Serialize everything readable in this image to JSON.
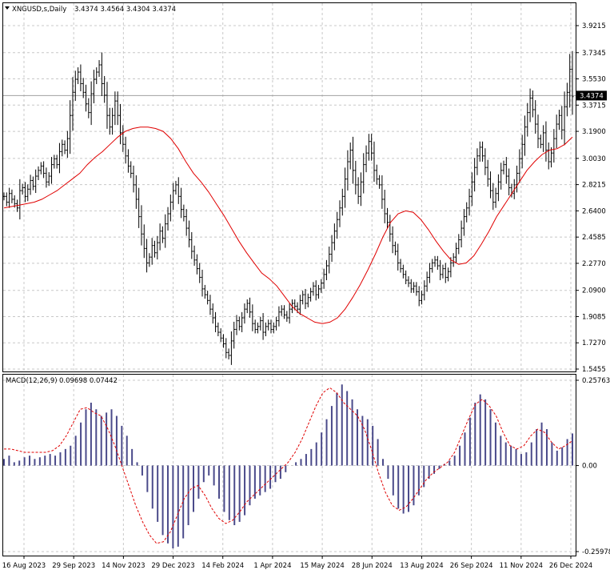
{
  "header": {
    "symbol_label": "XNGUSD,s,Daily",
    "ohlc": "3.4374 3.4564 3.4304 3.4374",
    "menu_icon": "triangle-down-icon"
  },
  "price_tag": "3.4374",
  "macd_header": {
    "label": "MACD(12,26,9)",
    "values": "0.09698 0.07442"
  },
  "colors": {
    "bars": "#000000",
    "moving_average": "#e00000",
    "macd_histogram": "#4a4a8a",
    "macd_signal": "#e00000",
    "grid": "#c8c8c8",
    "background": "#ffffff"
  },
  "chart_data": [
    {
      "type": "bar",
      "subtype": "ohlc",
      "title": "XNGUSD,s,Daily",
      "ylim": [
        1.5455,
        3.9215
      ],
      "y_ticks": [
        "3.9215",
        "3.7345",
        "3.5530",
        "3.3715",
        "3.1900",
        "3.0030",
        "2.8215",
        "2.6400",
        "2.4585",
        "2.2770",
        "2.0900",
        "1.9085",
        "1.7270",
        "1.5455"
      ],
      "y_tick_values": [
        3.9215,
        3.7345,
        3.553,
        3.3715,
        3.19,
        3.003,
        2.8215,
        2.64,
        2.4585,
        2.277,
        2.09,
        1.9085,
        1.727,
        1.5455
      ],
      "x_ticks": [
        "16 Aug 2023",
        "29 Sep 2023",
        "14 Nov 2023",
        "29 Dec 2023",
        "14 Feb 2024",
        "1 Apr 2024",
        "15 May 2024",
        "28 Jun 2024",
        "13 Aug 2024",
        "26 Sep 2024",
        "11 Nov 2024",
        "26 Dec 2024"
      ],
      "current_price": 3.4374,
      "grid": true,
      "series": [
        {
          "kind": "price_closes",
          "values": [
            2.74,
            2.7,
            2.76,
            2.72,
            2.69,
            2.66,
            2.78,
            2.8,
            2.74,
            2.79,
            2.85,
            2.81,
            2.88,
            2.92,
            2.95,
            2.9,
            2.84,
            2.88,
            2.96,
            3.0,
            2.96,
            3.05,
            3.1,
            3.06,
            3.14,
            3.3,
            3.46,
            3.55,
            3.6,
            3.52,
            3.46,
            3.38,
            3.32,
            3.45,
            3.55,
            3.6,
            3.65,
            3.52,
            3.44,
            3.3,
            3.22,
            3.3,
            3.4,
            3.3,
            3.18,
            3.1,
            3.02,
            2.95,
            2.9,
            2.82,
            2.72,
            2.6,
            2.48,
            2.38,
            2.28,
            2.32,
            2.4,
            2.35,
            2.42,
            2.5,
            2.45,
            2.55,
            2.62,
            2.7,
            2.78,
            2.82,
            2.74,
            2.65,
            2.6,
            2.52,
            2.44,
            2.36,
            2.3,
            2.24,
            2.18,
            2.1,
            2.06,
            2.02,
            1.96,
            1.9,
            1.84,
            1.8,
            1.76,
            1.72,
            1.66,
            1.64,
            1.74,
            1.82,
            1.88,
            1.84,
            1.9,
            1.96,
            2.0,
            1.94,
            1.86,
            1.82,
            1.84,
            1.88,
            1.8,
            1.84,
            1.86,
            1.82,
            1.84,
            1.88,
            1.94,
            1.96,
            1.92,
            1.9,
            1.96,
            2.0,
            1.98,
            1.96,
            2.02,
            2.06,
            2.0,
            2.04,
            2.08,
            2.12,
            2.06,
            2.1,
            2.14,
            2.2,
            2.26,
            2.34,
            2.42,
            2.5,
            2.58,
            2.66,
            2.74,
            2.86,
            2.98,
            3.06,
            2.92,
            2.82,
            2.74,
            2.84,
            2.96,
            3.04,
            3.12,
            3.04,
            2.92,
            2.86,
            2.82,
            2.72,
            2.62,
            2.56,
            2.48,
            2.4,
            2.36,
            2.28,
            2.24,
            2.2,
            2.16,
            2.14,
            2.1,
            2.12,
            2.08,
            2.02,
            2.06,
            2.12,
            2.18,
            2.24,
            2.28,
            2.3,
            2.26,
            2.2,
            2.24,
            2.18,
            2.22,
            2.28,
            2.32,
            2.38,
            2.44,
            2.52,
            2.6,
            2.66,
            2.74,
            2.84,
            2.94,
            3.02,
            3.08,
            3.02,
            2.94,
            2.86,
            2.78,
            2.7,
            2.76,
            2.84,
            2.92,
            2.96,
            2.88,
            2.8,
            2.76,
            2.82,
            2.9,
            3.0,
            3.1,
            3.22,
            3.32,
            3.42,
            3.34,
            3.24,
            3.14,
            3.1,
            3.18,
            3.06,
            2.98,
            3.04,
            3.14,
            3.24,
            3.3,
            3.2,
            3.36,
            3.46,
            3.62,
            3.43
          ]
        },
        {
          "kind": "moving_average",
          "color": "#e00000",
          "values": [
            2.66,
            2.67,
            2.68,
            2.69,
            2.7,
            2.72,
            2.75,
            2.78,
            2.82,
            2.86,
            2.9,
            2.96,
            3.01,
            3.05,
            3.1,
            3.15,
            3.19,
            3.21,
            3.22,
            3.22,
            3.21,
            3.19,
            3.14,
            3.07,
            2.98,
            2.9,
            2.84,
            2.77,
            2.69,
            2.61,
            2.52,
            2.43,
            2.35,
            2.28,
            2.21,
            2.17,
            2.12,
            2.05,
            1.98,
            1.93,
            1.9,
            1.87,
            1.86,
            1.87,
            1.9,
            1.96,
            2.04,
            2.13,
            2.23,
            2.34,
            2.46,
            2.56,
            2.62,
            2.64,
            2.63,
            2.58,
            2.51,
            2.43,
            2.36,
            2.3,
            2.27,
            2.28,
            2.33,
            2.41,
            2.5,
            2.6,
            2.68,
            2.76,
            2.84,
            2.92,
            2.98,
            3.03,
            3.06,
            3.07,
            3.1,
            3.15
          ]
        }
      ]
    },
    {
      "type": "bar",
      "subtype": "macd",
      "title": "MACD(12,26,9)",
      "ylim": [
        -0.25978,
        0.25763
      ],
      "y_ticks": [
        "0.25763",
        "0.00",
        "-0.25978"
      ],
      "y_tick_values": [
        0.25763,
        0.0,
        -0.25978
      ],
      "last_macd": 0.09698,
      "last_signal": 0.07442,
      "grid": true,
      "series": [
        {
          "name": "MACD",
          "kind": "histogram",
          "values": [
            0.02,
            0.03,
            0.01,
            0.015,
            0.025,
            0.03,
            0.02,
            0.025,
            0.03,
            0.035,
            0.03,
            0.04,
            0.05,
            0.06,
            0.09,
            0.13,
            0.17,
            0.19,
            0.17,
            0.15,
            0.16,
            0.17,
            0.15,
            0.12,
            0.09,
            0.05,
            0.01,
            -0.03,
            -0.08,
            -0.13,
            -0.17,
            -0.21,
            -0.235,
            -0.25,
            -0.245,
            -0.22,
            -0.18,
            -0.14,
            -0.1,
            -0.05,
            -0.03,
            -0.06,
            -0.1,
            -0.14,
            -0.165,
            -0.18,
            -0.17,
            -0.15,
            -0.12,
            -0.1,
            -0.09,
            -0.08,
            -0.07,
            -0.05,
            -0.04,
            -0.02,
            0.0,
            0.01,
            0.02,
            0.035,
            0.05,
            0.07,
            0.1,
            0.14,
            0.18,
            0.22,
            0.245,
            0.225,
            0.2,
            0.17,
            0.15,
            0.14,
            0.12,
            0.08,
            0.02,
            -0.04,
            -0.09,
            -0.13,
            -0.145,
            -0.14,
            -0.12,
            -0.09,
            -0.065,
            -0.04,
            -0.025,
            -0.01,
            0.005,
            0.015,
            0.03,
            0.06,
            0.1,
            0.145,
            0.19,
            0.215,
            0.2,
            0.17,
            0.13,
            0.09,
            0.07,
            0.06,
            0.05,
            0.035,
            0.04,
            0.07,
            0.11,
            0.13,
            0.11,
            0.07,
            0.045,
            0.055,
            0.08,
            0.097
          ]
        },
        {
          "name": "Signal",
          "kind": "line",
          "color": "#e00000",
          "values": [
            0.05,
            0.05,
            0.045,
            0.04,
            0.04,
            0.04,
            0.04,
            0.045,
            0.06,
            0.09,
            0.13,
            0.17,
            0.175,
            0.16,
            0.15,
            0.11,
            0.06,
            0.0,
            -0.06,
            -0.12,
            -0.17,
            -0.21,
            -0.235,
            -0.23,
            -0.2,
            -0.15,
            -0.1,
            -0.07,
            -0.06,
            -0.09,
            -0.13,
            -0.16,
            -0.175,
            -0.165,
            -0.14,
            -0.11,
            -0.09,
            -0.07,
            -0.05,
            -0.03,
            -0.01,
            0.01,
            0.04,
            0.08,
            0.13,
            0.18,
            0.22,
            0.235,
            0.22,
            0.19,
            0.17,
            0.15,
            0.11,
            0.05,
            -0.02,
            -0.08,
            -0.12,
            -0.135,
            -0.125,
            -0.1,
            -0.07,
            -0.04,
            -0.02,
            -0.005,
            0.01,
            0.04,
            0.09,
            0.14,
            0.185,
            0.2,
            0.18,
            0.15,
            0.1,
            0.06,
            0.05,
            0.06,
            0.09,
            0.11,
            0.1,
            0.07,
            0.05,
            0.06,
            0.075
          ]
        }
      ]
    }
  ]
}
